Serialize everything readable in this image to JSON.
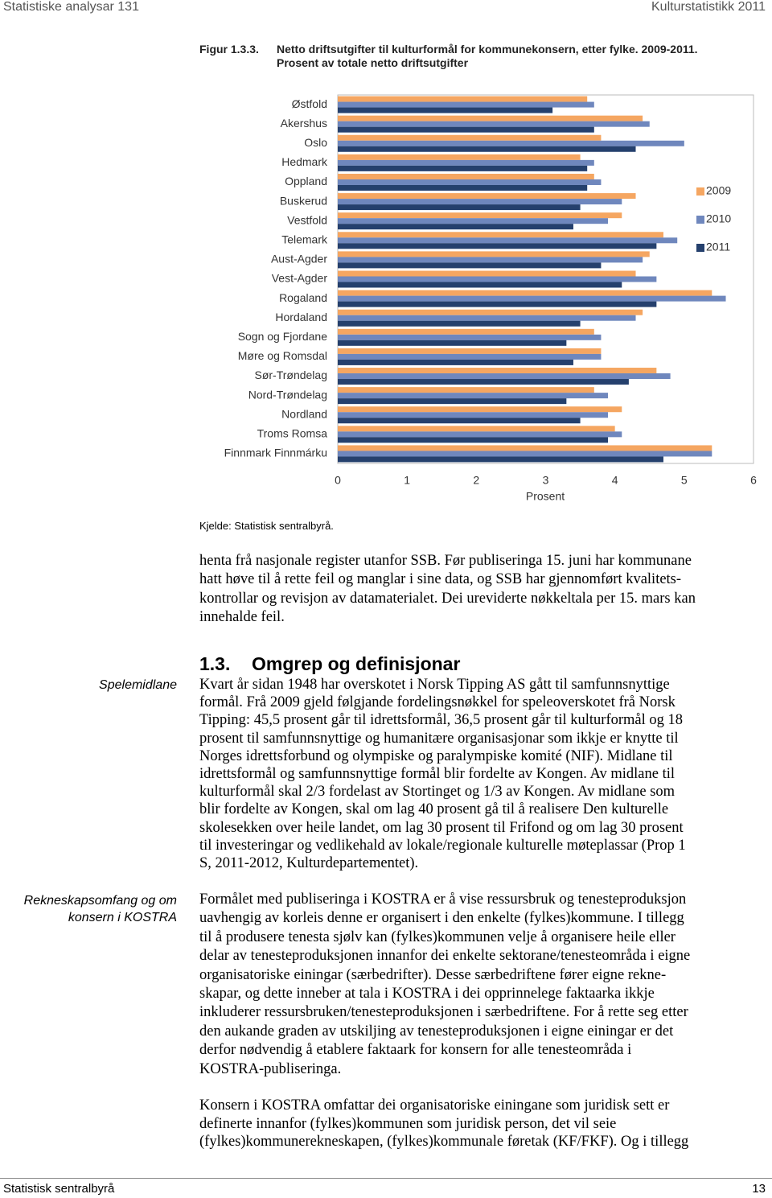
{
  "header": {
    "left": "Statistiske analysar 131",
    "right": "Kulturstatistikk 2011"
  },
  "figure": {
    "number": "Figur 1.3.3.",
    "caption_lines": [
      "Netto driftsutgifter til kulturformål for kommunekonsern, etter fylke. 2009-2011.",
      "Prosent av totale netto driftsutgifter"
    ],
    "source": "Kjelde: Statistisk sentralbyrå."
  },
  "chart_data": {
    "type": "hbar",
    "xlabel": "Prosent",
    "categories": [
      "Østfold",
      "Akershus",
      "Oslo",
      "Hedmark",
      "Oppland",
      "Buskerud",
      "Vestfold",
      "Telemark",
      "Aust-Agder",
      "Vest-Agder",
      "Rogaland",
      "Hordaland",
      "Sogn og Fjordane",
      "Møre og Romsdal",
      "Sør-Trøndelag",
      "Nord-Trøndelag",
      "Nordland",
      "Troms Romsa",
      "Finnmark Finnmárku"
    ],
    "series": [
      {
        "name": "2009",
        "color": "#f5a661",
        "values": [
          3.6,
          4.4,
          3.8,
          3.5,
          3.7,
          4.3,
          4.1,
          4.7,
          4.5,
          4.3,
          5.4,
          4.4,
          3.7,
          3.8,
          4.6,
          3.7,
          4.1,
          4.0,
          5.4
        ]
      },
      {
        "name": "2010",
        "color": "#6f87bd",
        "values": [
          3.7,
          4.5,
          5.0,
          3.7,
          3.8,
          4.1,
          3.9,
          4.9,
          4.4,
          4.6,
          5.6,
          4.3,
          3.8,
          3.8,
          4.8,
          3.9,
          3.9,
          4.1,
          5.4
        ]
      },
      {
        "name": "2011",
        "color": "#25406d",
        "values": [
          3.1,
          3.7,
          4.3,
          3.6,
          3.6,
          3.5,
          3.4,
          4.6,
          3.8,
          4.1,
          4.6,
          3.5,
          3.3,
          3.4,
          4.2,
          3.3,
          3.5,
          3.9,
          4.7
        ]
      }
    ],
    "xlim": [
      0,
      6
    ],
    "xticks": [
      0,
      1,
      2,
      3,
      4,
      5,
      6
    ],
    "grid": false,
    "legend": "right"
  },
  "body": {
    "paragraphs": [
      [
        "henta frå nasjonale register utanfor SSB. Før publiseringa 15. juni har kommunane",
        "hatt høve til å rette feil og manglar i sine data, og SSB har gjennomført kvalitets-",
        "kontrollar og revisjon av datamaterialet. Dei ureviderte nøkkeltala per 15. mars kan",
        "innehalde feil."
      ],
      [
        "Kvart år sidan 1948 har overskotet i Norsk Tipping AS gått til samfunnsnyttige",
        "formål. Frå 2009 gjeld følgjande fordelingsnøkkel for speleoverskotet frå Norsk",
        "Tipping: 45,5 prosent går til idrettsformål, 36,5 prosent går til kulturformål og 18",
        "prosent til samfunnsnyttige og humanitære organisasjonar som ikkje er knytte til",
        "Norges idrettsforbund og olympiske og paralympiske komité (NIF). Midlane til",
        "idrettsformål og samfunnsnyttige formål blir fordelte av Kongen. Av midlane til",
        "kulturformål skal 2/3 fordelast av Stortinget og 1/3 av Kongen. Av midlane som",
        "blir fordelte av Kongen, skal om lag 40 prosent gå til å realisere Den kulturelle",
        "skolesekken over heile landet, om lag 30 prosent til Frifond og om lag 30 prosent",
        "til investeringar og vedlikehald av lokale/regionale kulturelle møteplassar (Prop 1",
        "S, 2011-2012, Kulturdepartementet)."
      ],
      [
        "Formålet med publiseringa i KOSTRA er å vise ressursbruk og tenesteproduksjon",
        "uavhengig av korleis denne er organisert i den enkelte (fylkes)kommune. I tillegg",
        "til å produsere tenesta sjølv kan (fylkes)kommunen velje å organisere heile eller",
        "delar av tenesteproduksjonen innanfor dei enkelte sektorane/tenesteområda i eigne",
        "organisatoriske einingar (særbedrifter). Desse særbedriftene fører eigne rekne-",
        "skapar, og dette inneber at tala i KOSTRA i dei opprinnelege faktaarka ikkje",
        "inkluderer ressursbruken/tenesteproduksjonen i særbedriftene. For å rette seg etter",
        "den aukande graden av utskiljing av tenesteproduksjonen i eigne einingar er det",
        "derfor nødvendig å etablere faktaark for konsern for alle tenesteområda i",
        "KOSTRA-publiseringa."
      ],
      [
        "Konsern i KOSTRA omfattar dei organisatoriske einingane som juridisk sett er",
        "definerte innanfor (fylkes)kommunen som juridisk person, det vil seie",
        "(fylkes)kommunerekneskapen, (fylkes)kommunale føretak (KF/FKF). Og i tillegg"
      ]
    ],
    "section": {
      "number": "1.3.",
      "title": "Omgrep og definisjonar"
    },
    "margin_notes": [
      [
        "Spelemidlane"
      ],
      [
        "Rekneskapsomfang og om",
        "konsern i KOSTRA"
      ]
    ]
  },
  "footer": {
    "left": "Statistisk sentralbyrå",
    "right": "13"
  }
}
